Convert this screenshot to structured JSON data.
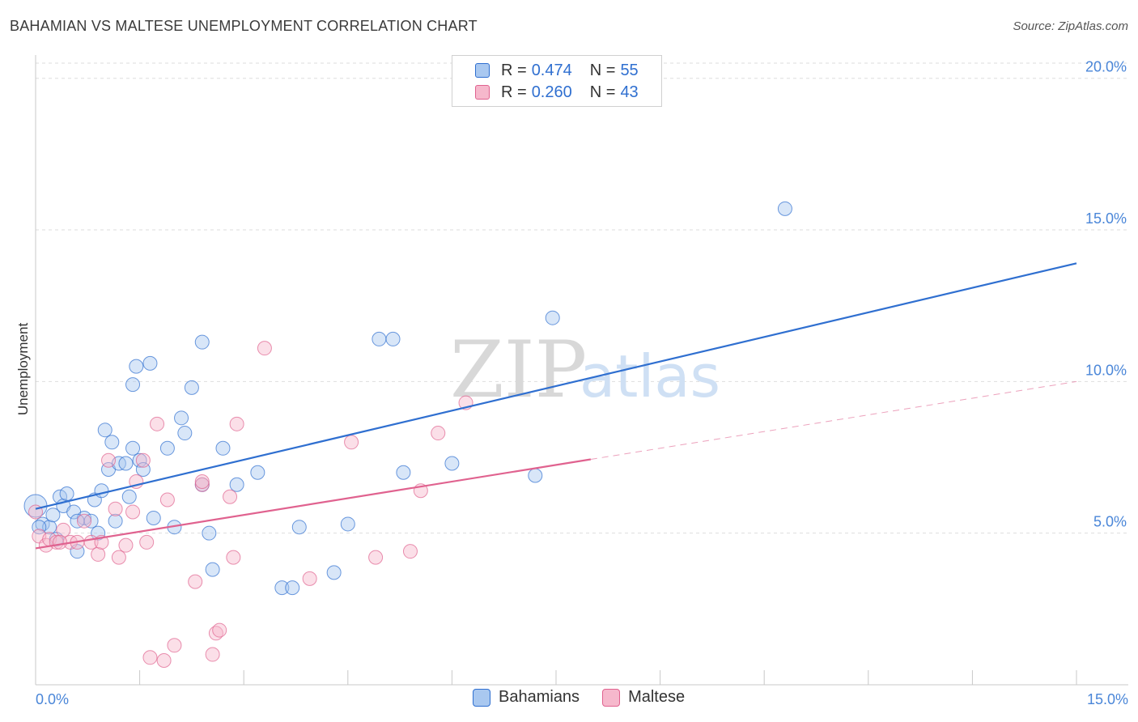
{
  "header": {
    "title": "BAHAMIAN VS MALTESE UNEMPLOYMENT CORRELATION CHART",
    "source": "Source: ZipAtlas.com"
  },
  "watermark": {
    "zip": "ZIP",
    "atlas": "atlas"
  },
  "colors": {
    "blue": "#2f6fd0",
    "blue_fill": "#a9c8f0",
    "pink": "#e0628f",
    "pink_fill": "#f6b8cc",
    "grid": "#dddddd",
    "tick_text": "#4a86d8"
  },
  "legend": {
    "rows": [
      {
        "r_label": "R = ",
        "r_value": "0.474",
        "n_label": "N = ",
        "n_value": "55",
        "series": "Bahamians"
      },
      {
        "r_label": "R = ",
        "r_value": "0.260",
        "n_label": "N = ",
        "n_value": "43",
        "series": "Maltese"
      }
    ]
  },
  "bottom_legend": {
    "items": [
      "Bahamians",
      "Maltese"
    ]
  },
  "chart_data": {
    "type": "scatter",
    "title": "BAHAMIAN VS MALTESE UNEMPLOYMENT CORRELATION CHART",
    "xlabel": "",
    "ylabel": "Unemployment",
    "xlim": [
      0,
      15
    ],
    "ylim": [
      0,
      20.5
    ],
    "x_tick_labels": [
      "0.0%",
      "15.0%"
    ],
    "y_ticks": [
      5,
      10,
      15,
      20
    ],
    "y_tick_labels": [
      "5.0%",
      "10.0%",
      "15.0%",
      "20.0%"
    ],
    "grid": true,
    "series": [
      {
        "name": "Bahamians",
        "color": "#2f6fd0",
        "trend": {
          "x0": 0,
          "y0": 5.8,
          "x1": 15,
          "y1": 13.9,
          "dashed_from": null
        },
        "points": [
          [
            0.0,
            5.9
          ],
          [
            0.1,
            5.3
          ],
          [
            0.2,
            5.2
          ],
          [
            0.25,
            5.6
          ],
          [
            0.35,
            6.2
          ],
          [
            0.4,
            5.9
          ],
          [
            0.45,
            6.3
          ],
          [
            0.55,
            5.7
          ],
          [
            0.6,
            4.4
          ],
          [
            0.7,
            5.5
          ],
          [
            0.8,
            5.4
          ],
          [
            0.85,
            6.1
          ],
          [
            0.9,
            5.0
          ],
          [
            0.95,
            6.4
          ],
          [
            1.0,
            8.4
          ],
          [
            1.05,
            7.1
          ],
          [
            1.1,
            8.0
          ],
          [
            1.15,
            5.4
          ],
          [
            1.2,
            7.3
          ],
          [
            1.3,
            7.3
          ],
          [
            1.35,
            6.2
          ],
          [
            1.4,
            7.8
          ],
          [
            1.4,
            9.9
          ],
          [
            1.45,
            10.5
          ],
          [
            1.5,
            7.4
          ],
          [
            1.55,
            7.1
          ],
          [
            1.65,
            10.6
          ],
          [
            1.7,
            5.5
          ],
          [
            1.9,
            7.8
          ],
          [
            2.0,
            5.2
          ],
          [
            2.1,
            8.8
          ],
          [
            2.15,
            8.3
          ],
          [
            2.25,
            9.8
          ],
          [
            2.4,
            6.6
          ],
          [
            2.4,
            11.3
          ],
          [
            2.5,
            5.0
          ],
          [
            2.55,
            3.8
          ],
          [
            2.7,
            7.8
          ],
          [
            2.9,
            6.6
          ],
          [
            3.2,
            7.0
          ],
          [
            3.55,
            3.2
          ],
          [
            3.7,
            3.2
          ],
          [
            3.8,
            5.2
          ],
          [
            4.3,
            3.7
          ],
          [
            4.5,
            5.3
          ],
          [
            4.95,
            11.4
          ],
          [
            5.15,
            11.4
          ],
          [
            5.3,
            7.0
          ],
          [
            6.0,
            7.3
          ],
          [
            7.2,
            6.9
          ],
          [
            7.45,
            12.1
          ],
          [
            10.8,
            15.7
          ],
          [
            0.05,
            5.2
          ],
          [
            0.3,
            4.8
          ],
          [
            0.6,
            5.4
          ]
        ]
      },
      {
        "name": "Maltese",
        "color": "#e0628f",
        "trend": {
          "x0": 0,
          "y0": 4.5,
          "x1": 15,
          "y1": 10.0,
          "dashed_from": 8.0
        },
        "points": [
          [
            0.0,
            5.7
          ],
          [
            0.05,
            4.9
          ],
          [
            0.15,
            4.6
          ],
          [
            0.2,
            4.8
          ],
          [
            0.3,
            4.7
          ],
          [
            0.4,
            5.1
          ],
          [
            0.5,
            4.7
          ],
          [
            0.6,
            4.7
          ],
          [
            0.7,
            5.4
          ],
          [
            0.8,
            4.7
          ],
          [
            0.9,
            4.3
          ],
          [
            0.95,
            4.7
          ],
          [
            1.05,
            7.4
          ],
          [
            1.15,
            5.8
          ],
          [
            1.2,
            4.2
          ],
          [
            1.3,
            4.6
          ],
          [
            1.4,
            5.7
          ],
          [
            1.45,
            6.7
          ],
          [
            1.55,
            7.4
          ],
          [
            1.6,
            4.7
          ],
          [
            1.65,
            0.9
          ],
          [
            1.75,
            8.6
          ],
          [
            1.85,
            0.8
          ],
          [
            1.9,
            6.1
          ],
          [
            2.0,
            1.3
          ],
          [
            2.3,
            3.4
          ],
          [
            2.4,
            6.6
          ],
          [
            2.55,
            1.0
          ],
          [
            2.6,
            1.7
          ],
          [
            2.65,
            1.8
          ],
          [
            2.8,
            6.2
          ],
          [
            2.85,
            4.2
          ],
          [
            2.9,
            8.6
          ],
          [
            3.3,
            11.1
          ],
          [
            3.95,
            3.5
          ],
          [
            4.55,
            8.0
          ],
          [
            4.9,
            4.2
          ],
          [
            5.4,
            4.4
          ],
          [
            5.55,
            6.4
          ],
          [
            5.8,
            8.3
          ],
          [
            6.2,
            9.3
          ],
          [
            0.35,
            4.7
          ],
          [
            2.4,
            6.7
          ]
        ]
      }
    ]
  }
}
